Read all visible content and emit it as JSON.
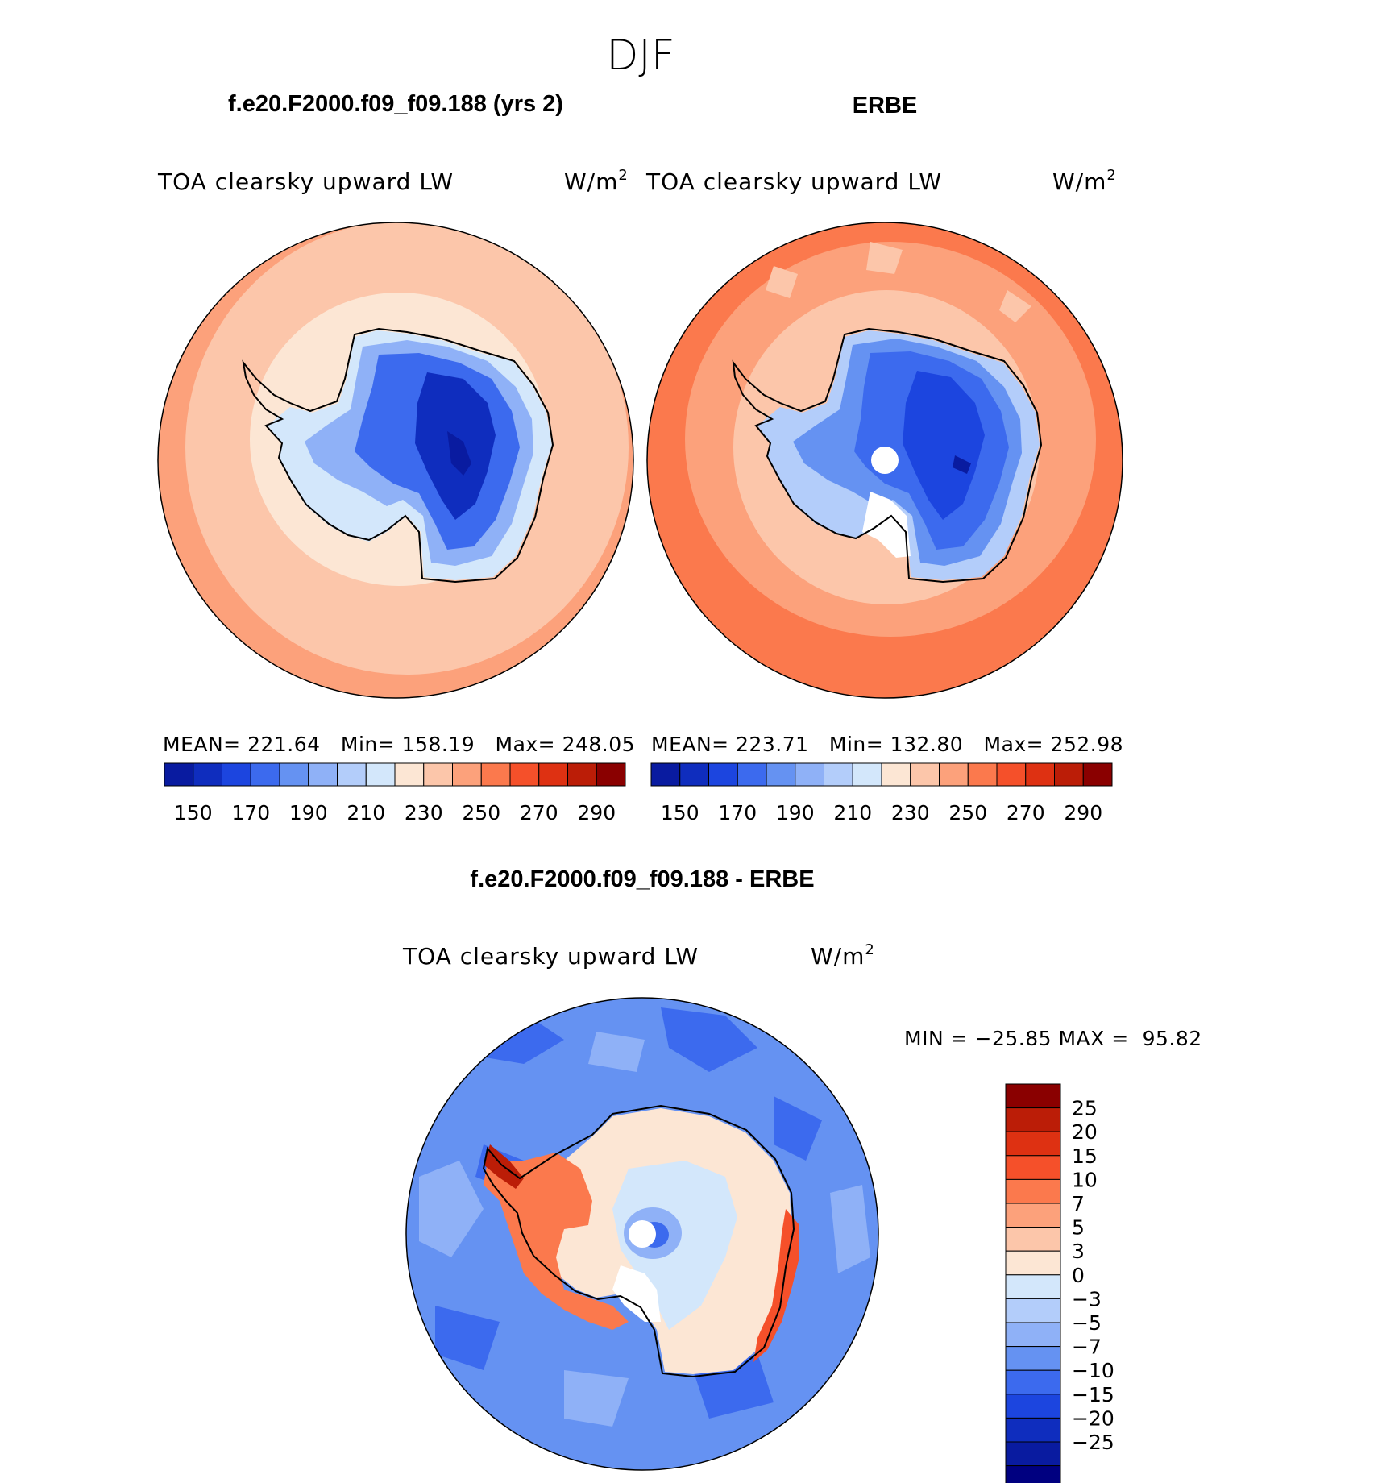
{
  "page_title": "DJF",
  "colors": {
    "positive_ramp": [
      "#fce6d4",
      "#fcc6aa",
      "#fca17b",
      "#fb794d",
      "#f5502a",
      "#de3112",
      "#bb1d07",
      "#8a0000"
    ],
    "negative_ramp": [
      "#d3e7fb",
      "#b3cdfa",
      "#8fb1f7",
      "#6592f2",
      "#3c6aee",
      "#1c45df",
      "#0f2dbe",
      "#091ba0",
      "#000080"
    ],
    "outline": "#000000"
  },
  "chart_data": [
    {
      "type": "heatmap",
      "projection": "south polar stereographic",
      "title": "f.e20.F2000.f09_f09.188 (yrs 2)",
      "variable": "TOA clearsky upward LW",
      "units_base": "W/m",
      "units_exp": "2",
      "stats": {
        "mean_label": "MEAN=",
        "mean": "221.64",
        "min_label": "Min=",
        "min": "158.19",
        "max_label": "Max=",
        "max": "248.05"
      },
      "mean": 221.64,
      "min": 158.19,
      "max": 248.05,
      "colorbar": {
        "orientation": "horizontal",
        "ticks": [
          "150",
          "170",
          "190",
          "210",
          "230",
          "250",
          "270",
          "290"
        ],
        "levels": [
          140,
          150,
          160,
          170,
          180,
          190,
          200,
          210,
          220,
          230,
          240,
          250,
          260,
          270,
          280,
          290,
          300
        ]
      },
      "field_summary": {
        "ocean_outer": 245,
        "ocean_mid": 235,
        "coast_belt": 222,
        "continent_edge": 205,
        "plateau": 170,
        "interior_min": 158
      }
    },
    {
      "type": "heatmap",
      "projection": "south polar stereographic",
      "title": "ERBE",
      "variable": "TOA clearsky upward LW",
      "units_base": "W/m",
      "units_exp": "2",
      "stats": {
        "mean_label": "MEAN=",
        "mean": "223.71",
        "min_label": "Min=",
        "min": "132.80",
        "max_label": "Max=",
        "max": "252.98"
      },
      "mean": 223.71,
      "min": 132.8,
      "max": 252.98,
      "colorbar": {
        "orientation": "horizontal",
        "ticks": [
          "150",
          "170",
          "190",
          "210",
          "230",
          "250",
          "270",
          "290"
        ],
        "levels": [
          140,
          150,
          160,
          170,
          180,
          190,
          200,
          210,
          220,
          230,
          240,
          250,
          260,
          270,
          280,
          290,
          300
        ]
      },
      "field_summary": {
        "ocean_outer": 252,
        "ocean_mid": 245,
        "coast_belt": 232,
        "continent_edge": 200,
        "plateau": 170,
        "interior_min": 160
      }
    },
    {
      "type": "heatmap",
      "projection": "south polar stereographic",
      "title": "f.e20.F2000.f09_f09.188 - ERBE",
      "variable": "TOA clearsky upward LW",
      "units_base": "W/m",
      "units_exp": "2",
      "range_text": {
        "min_label": "MIN =",
        "min": "−25.85",
        "max_label": "MAX =",
        "max": "95.82"
      },
      "min": -25.85,
      "max": 95.82,
      "colorbar": {
        "orientation": "vertical",
        "ticks": [
          "25",
          "20",
          "15",
          "10",
          "7",
          "5",
          "3",
          "0",
          "−3",
          "−5",
          "−7",
          "−10",
          "−15",
          "−20",
          "−25"
        ],
        "levels": [
          -25,
          -20,
          -15,
          -10,
          -7,
          -5,
          -3,
          0,
          3,
          5,
          7,
          10,
          15,
          20,
          25
        ]
      },
      "field_summary": {
        "ocean": -7,
        "peninsula_and_west": 12,
        "east_coast": 15,
        "interior": 3,
        "plateau_center": -5
      }
    }
  ]
}
